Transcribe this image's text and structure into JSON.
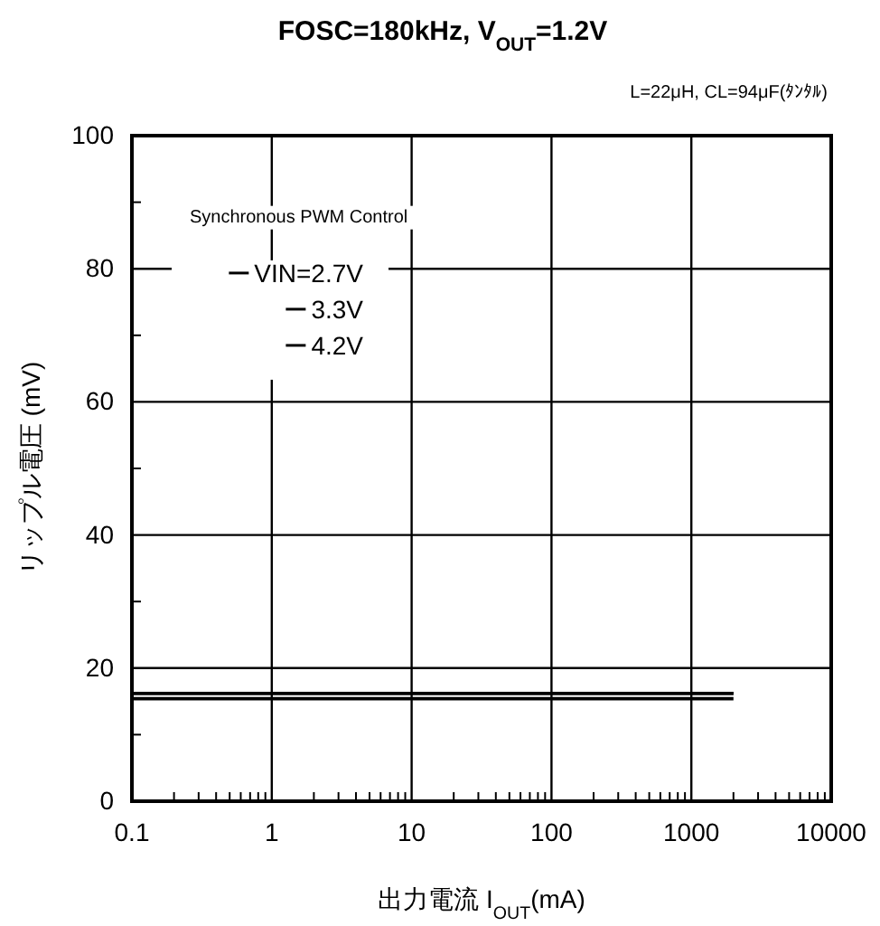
{
  "chart_data": {
    "type": "line",
    "title": "FOSC=180kHz, V$_{OUT}$=1.2V",
    "xlabel": "出力電流 I$_{OUT}$(mA)",
    "ylabel": "リップル電圧 (mV)",
    "annotations": [
      "L=22μH, CL=94μF(ﾀﾝﾀﾙ)",
      "Synchronous PWM Control"
    ],
    "x": [
      0.1,
      2000
    ],
    "series": [
      {
        "name": "VIN=2.7V",
        "color": "#000000",
        "values": [
          16.2,
          16.2
        ]
      },
      {
        "name": "3.3V",
        "color": "#000000",
        "values": [
          16.2,
          16.2
        ]
      },
      {
        "name": "4.2V",
        "color": "#000000",
        "values": [
          15.4,
          15.4
        ]
      }
    ],
    "log": "x",
    "xlim": [
      0.1,
      10000
    ],
    "xticks": [
      0.1,
      {
        "value": 0.2,
        "label": null
      },
      {
        "value": 0.3,
        "label": null
      },
      {
        "value": 0.4,
        "label": null
      },
      {
        "value": 0.5,
        "label": null
      },
      {
        "value": 0.6,
        "label": null
      },
      {
        "value": 0.7,
        "label": null
      },
      {
        "value": 0.8,
        "label": null
      },
      {
        "value": 0.9,
        "label": null
      },
      1,
      {
        "value": 2,
        "label": null
      },
      {
        "value": 3,
        "label": null
      },
      {
        "value": 4,
        "label": null
      },
      {
        "value": 5,
        "label": null
      },
      {
        "value": 6,
        "label": null
      },
      {
        "value": 7,
        "label": null
      },
      {
        "value": 8,
        "label": null
      },
      {
        "value": 9,
        "label": null
      },
      10,
      {
        "value": 20,
        "label": null
      },
      {
        "value": 30,
        "label": null
      },
      {
        "value": 40,
        "label": null
      },
      {
        "value": 50,
        "label": null
      },
      {
        "value": 60,
        "label": null
      },
      {
        "value": 70,
        "label": null
      },
      {
        "value": 80,
        "label": null
      },
      {
        "value": 90,
        "label": null
      },
      100,
      {
        "value": 200,
        "label": null
      },
      {
        "value": 300,
        "label": null
      },
      {
        "value": 400,
        "label": null
      },
      {
        "value": 500,
        "label": null
      },
      {
        "value": 600,
        "label": null
      },
      {
        "value": 700,
        "label": null
      },
      {
        "value": 800,
        "label": null
      },
      {
        "value": 900,
        "label": null
      },
      1000,
      {
        "value": 2000,
        "label": null
      },
      {
        "value": 3000,
        "label": null
      },
      {
        "value": 4000,
        "label": null
      },
      {
        "value": 5000,
        "label": null
      },
      {
        "value": 6000,
        "label": null
      },
      {
        "value": 7000,
        "label": null
      },
      {
        "value": 8000,
        "label": null
      },
      {
        "value": 9000,
        "label": null
      },
      10000
    ],
    "ylim": [
      0,
      100
    ],
    "yticks": [
      0,
      {
        "value": 10,
        "label": null
      },
      20,
      {
        "value": 30,
        "label": null
      },
      40,
      {
        "value": 50,
        "label": null
      },
      60,
      {
        "value": 70,
        "label": null
      },
      80,
      {
        "value": 90,
        "label": null
      },
      100
    ],
    "grid": true,
    "legend": "top left",
    "line_style": "solid",
    "marker": "none"
  }
}
